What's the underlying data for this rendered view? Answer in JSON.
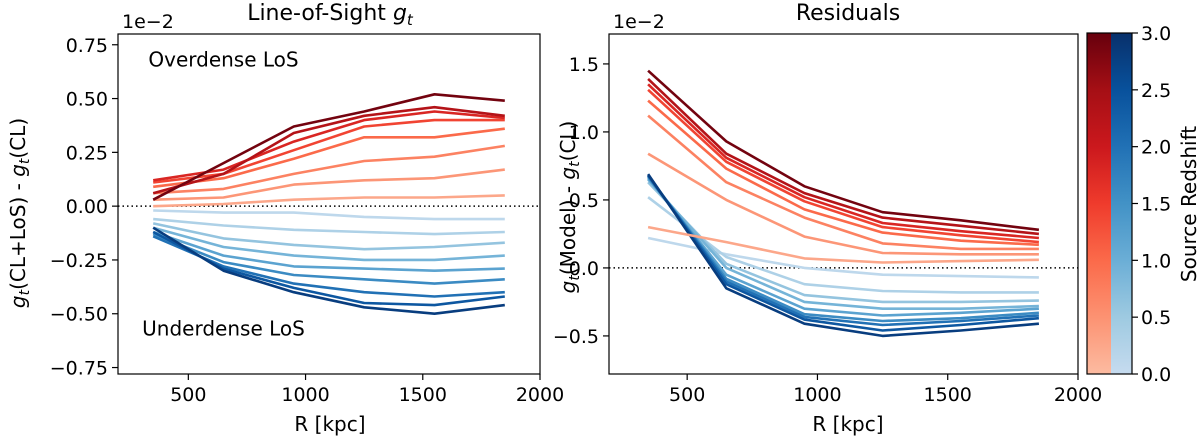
{
  "chart_data": [
    {
      "type": "line",
      "title": "Line-of-Sight g_t",
      "title_main": "Line-of-Sight ",
      "title_var": "g",
      "title_sub": "t",
      "xlabel": "R [kpc]",
      "ylabel_parts": [
        "g",
        "t",
        "(CL+LoS) - ",
        "g",
        "t",
        "(CL)"
      ],
      "offset_label": "1e−2",
      "xlim": [
        200,
        2000
      ],
      "ylim": [
        -0.78,
        0.8
      ],
      "xticks": [
        500,
        1000,
        1500,
        2000
      ],
      "xtick_labels": [
        "500",
        "1000",
        "1500",
        "2000"
      ],
      "yticks": [
        -0.75,
        -0.5,
        -0.25,
        0.0,
        0.25,
        0.5,
        0.75
      ],
      "ytick_labels": [
        "−0.75",
        "−0.50",
        "−0.25",
        "0.00",
        "0.25",
        "0.50",
        "0.75"
      ],
      "reference_line": 0,
      "annotations": [
        {
          "text": "Overdense LoS",
          "x": 650,
          "y": 0.65
        },
        {
          "text": "Underdense LoS",
          "x": 650,
          "y": -0.6
        }
      ],
      "x": [
        350,
        650,
        950,
        1250,
        1550,
        1850
      ],
      "series": [
        {
          "z": 0.1,
          "values": [
            -0.02,
            -0.03,
            -0.03,
            -0.05,
            -0.06,
            -0.06
          ]
        },
        {
          "z": 0.3,
          "values": [
            -0.06,
            -0.09,
            -0.11,
            -0.12,
            -0.13,
            -0.12
          ]
        },
        {
          "z": 0.6,
          "values": [
            -0.08,
            -0.15,
            -0.18,
            -0.2,
            -0.19,
            -0.17
          ]
        },
        {
          "z": 0.9,
          "values": [
            -0.1,
            -0.19,
            -0.23,
            -0.25,
            -0.25,
            -0.23
          ]
        },
        {
          "z": 1.2,
          "values": [
            -0.12,
            -0.23,
            -0.28,
            -0.29,
            -0.3,
            -0.29
          ]
        },
        {
          "z": 1.6,
          "values": [
            -0.13,
            -0.26,
            -0.32,
            -0.34,
            -0.36,
            -0.34
          ]
        },
        {
          "z": 2.0,
          "values": [
            -0.14,
            -0.28,
            -0.36,
            -0.4,
            -0.42,
            -0.4
          ]
        },
        {
          "z": 2.4,
          "values": [
            -0.12,
            -0.29,
            -0.38,
            -0.45,
            -0.46,
            -0.42
          ]
        },
        {
          "z": 2.8,
          "values": [
            -0.1,
            -0.3,
            -0.4,
            -0.47,
            -0.5,
            -0.46
          ]
        },
        {
          "z": 0.25,
          "values": [
            0.0,
            0.01,
            0.03,
            0.04,
            0.04,
            0.05
          ]
        },
        {
          "z": 0.45,
          "values": [
            0.03,
            0.04,
            0.1,
            0.12,
            0.13,
            0.17
          ]
        },
        {
          "z": 0.7,
          "values": [
            0.06,
            0.08,
            0.15,
            0.21,
            0.23,
            0.28
          ]
        },
        {
          "z": 1.0,
          "values": [
            0.09,
            0.13,
            0.22,
            0.32,
            0.32,
            0.36
          ]
        },
        {
          "z": 1.4,
          "values": [
            0.11,
            0.15,
            0.26,
            0.37,
            0.4,
            0.4
          ]
        },
        {
          "z": 1.8,
          "values": [
            0.12,
            0.17,
            0.3,
            0.4,
            0.44,
            0.41
          ]
        },
        {
          "z": 2.3,
          "values": [
            0.06,
            0.15,
            0.34,
            0.42,
            0.46,
            0.42
          ]
        },
        {
          "z": 2.9,
          "values": [
            0.03,
            0.2,
            0.37,
            0.44,
            0.52,
            0.49
          ]
        }
      ]
    },
    {
      "type": "line",
      "title": "Residuals",
      "xlabel": "R [kpc]",
      "ylabel_parts": [
        "g",
        "t",
        "(Model) - ",
        "g",
        "t",
        "(CL)"
      ],
      "offset_label": "1e−2",
      "xlim": [
        200,
        2000
      ],
      "ylim": [
        -0.78,
        1.72
      ],
      "xticks": [
        500,
        1000,
        1500,
        2000
      ],
      "xtick_labels": [
        "500",
        "1000",
        "1500",
        "2000"
      ],
      "yticks": [
        -0.5,
        0.0,
        0.5,
        1.0,
        1.5
      ],
      "ytick_labels": [
        "−0.5",
        "0.0",
        "0.5",
        "1.0",
        "1.5"
      ],
      "reference_line": 0,
      "x": [
        350,
        650,
        950,
        1250,
        1550,
        1850
      ],
      "series": [
        {
          "z": 0.1,
          "values": [
            0.22,
            0.1,
            0.0,
            -0.05,
            -0.06,
            -0.07
          ]
        },
        {
          "z": 0.3,
          "values": [
            0.52,
            0.08,
            -0.12,
            -0.17,
            -0.18,
            -0.18
          ]
        },
        {
          "z": 0.6,
          "values": [
            0.63,
            0.03,
            -0.2,
            -0.25,
            -0.25,
            -0.24
          ]
        },
        {
          "z": 0.9,
          "values": [
            0.65,
            0.0,
            -0.25,
            -0.3,
            -0.3,
            -0.28
          ]
        },
        {
          "z": 1.2,
          "values": [
            0.66,
            -0.05,
            -0.3,
            -0.35,
            -0.33,
            -0.3
          ]
        },
        {
          "z": 1.6,
          "values": [
            0.67,
            -0.08,
            -0.34,
            -0.39,
            -0.37,
            -0.33
          ]
        },
        {
          "z": 2.0,
          "values": [
            0.68,
            -0.1,
            -0.36,
            -0.42,
            -0.39,
            -0.35
          ]
        },
        {
          "z": 2.4,
          "values": [
            0.68,
            -0.12,
            -0.38,
            -0.46,
            -0.42,
            -0.37
          ]
        },
        {
          "z": 2.8,
          "values": [
            0.69,
            -0.15,
            -0.41,
            -0.5,
            -0.46,
            -0.41
          ]
        },
        {
          "z": 0.25,
          "values": [
            0.3,
            0.19,
            0.07,
            0.04,
            0.05,
            0.06
          ]
        },
        {
          "z": 0.45,
          "values": [
            0.84,
            0.5,
            0.23,
            0.11,
            0.1,
            0.1
          ]
        },
        {
          "z": 0.7,
          "values": [
            1.12,
            0.63,
            0.37,
            0.18,
            0.14,
            0.14
          ]
        },
        {
          "z": 1.0,
          "values": [
            1.23,
            0.73,
            0.43,
            0.26,
            0.2,
            0.17
          ]
        },
        {
          "z": 1.4,
          "values": [
            1.31,
            0.78,
            0.49,
            0.3,
            0.24,
            0.19
          ]
        },
        {
          "z": 1.8,
          "values": [
            1.35,
            0.81,
            0.52,
            0.33,
            0.27,
            0.22
          ]
        },
        {
          "z": 2.3,
          "values": [
            1.39,
            0.84,
            0.55,
            0.37,
            0.31,
            0.25
          ]
        },
        {
          "z": 2.9,
          "values": [
            1.45,
            0.93,
            0.6,
            0.41,
            0.35,
            0.28
          ]
        }
      ]
    }
  ],
  "colorbar": {
    "label": "Source Redshift",
    "range": [
      0.0,
      3.0
    ],
    "ticks": [
      0.0,
      0.5,
      1.0,
      1.5,
      2.0,
      2.5,
      3.0
    ],
    "tick_labels": [
      "0.0",
      "0.5",
      "1.0",
      "1.5",
      "2.0",
      "2.5",
      "3.0"
    ],
    "reds_colors": [
      "#fcbba1",
      "#fc9272",
      "#fb6a4a",
      "#ef3b2c",
      "#cb181d",
      "#a50f15",
      "#67000d"
    ],
    "blues_colors": [
      "#c6dbef",
      "#9ecae1",
      "#6baed6",
      "#4292c6",
      "#2171b5",
      "#08519c",
      "#08306b"
    ]
  }
}
